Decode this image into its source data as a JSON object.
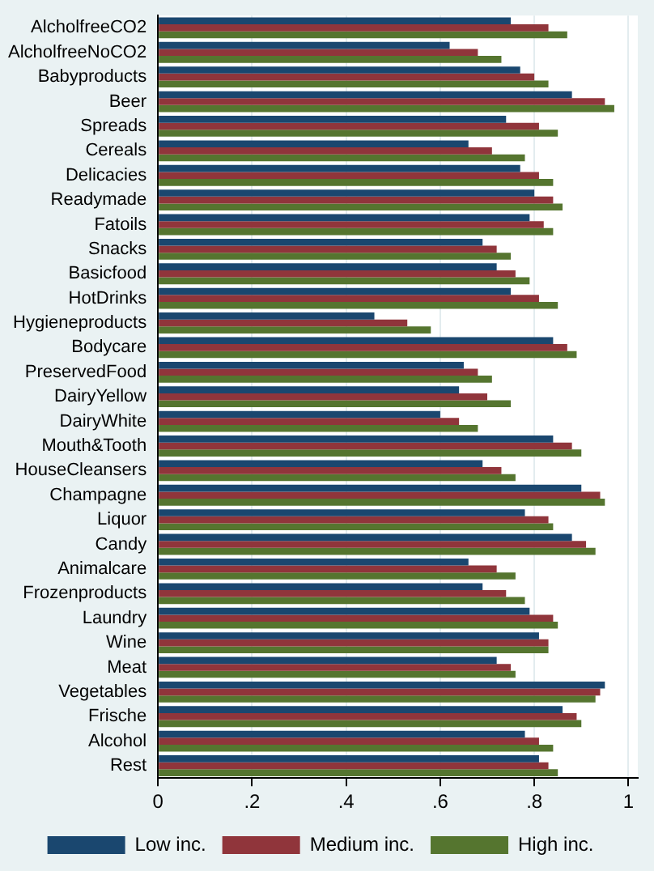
{
  "chart_data": {
    "type": "bar",
    "orientation": "horizontal",
    "categories": [
      "AlcholfreeCO2",
      "AlcholfreeNoCO2",
      "Babyproducts",
      "Beer",
      "Spreads",
      "Cereals",
      "Delicacies",
      "Readymade",
      "Fatoils",
      "Snacks",
      "Basicfood",
      "HotDrinks",
      "Hygieneproducts",
      "Bodycare",
      "PreservedFood",
      "DairyYellow",
      "DairyWhite",
      "Mouth&Tooth",
      "HouseCleansers",
      "Champagne",
      "Liquor",
      "Candy",
      "Animalcare",
      "Frozenproducts",
      "Laundry",
      "Wine",
      "Meat",
      "Vegetables",
      "Frische",
      "Alcohol",
      "Rest"
    ],
    "series": [
      {
        "name": "Low inc.",
        "color": "#1a476f",
        "values": [
          0.75,
          0.62,
          0.77,
          0.88,
          0.74,
          0.66,
          0.77,
          0.8,
          0.79,
          0.69,
          0.72,
          0.75,
          0.46,
          0.84,
          0.65,
          0.64,
          0.6,
          0.84,
          0.69,
          0.9,
          0.78,
          0.88,
          0.66,
          0.69,
          0.79,
          0.81,
          0.72,
          0.95,
          0.86,
          0.78,
          0.81
        ]
      },
      {
        "name": "Medium inc.",
        "color": "#90353b",
        "values": [
          0.83,
          0.68,
          0.8,
          0.95,
          0.81,
          0.71,
          0.81,
          0.84,
          0.82,
          0.72,
          0.76,
          0.81,
          0.53,
          0.87,
          0.68,
          0.7,
          0.64,
          0.88,
          0.73,
          0.94,
          0.83,
          0.91,
          0.72,
          0.74,
          0.84,
          0.83,
          0.75,
          0.94,
          0.89,
          0.81,
          0.83
        ]
      },
      {
        "name": "High inc.",
        "color": "#55752f",
        "values": [
          0.87,
          0.73,
          0.83,
          0.97,
          0.85,
          0.78,
          0.84,
          0.86,
          0.84,
          0.75,
          0.79,
          0.85,
          0.58,
          0.89,
          0.71,
          0.75,
          0.68,
          0.9,
          0.76,
          0.95,
          0.84,
          0.93,
          0.76,
          0.78,
          0.85,
          0.83,
          0.76,
          0.93,
          0.9,
          0.84,
          0.85
        ]
      }
    ],
    "xlim": [
      0,
      1.02
    ],
    "xticks": [
      {
        "value": 0,
        "label": "0"
      },
      {
        "value": 0.2,
        "label": ".2"
      },
      {
        "value": 0.4,
        "label": ".4"
      },
      {
        "value": 0.6,
        "label": ".6"
      },
      {
        "value": 0.8,
        "label": ".8"
      },
      {
        "value": 1,
        "label": "1"
      }
    ],
    "grid": "x",
    "legend": "bottom"
  }
}
